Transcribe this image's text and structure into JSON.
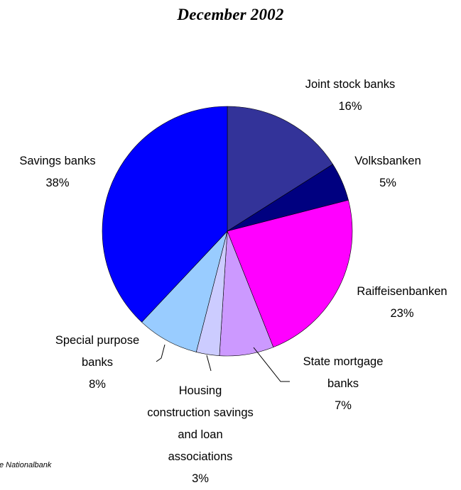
{
  "chart_data": {
    "type": "pie",
    "title": "December 2002",
    "slices": [
      {
        "label": "Joint stock banks",
        "value": 16,
        "value_label": "16%",
        "color": "#333399"
      },
      {
        "label": "Volksbanken",
        "value": 5,
        "value_label": "5%",
        "color": "#000080"
      },
      {
        "label": "Raiffeisenbanken",
        "value": 23,
        "value_label": "23%",
        "color": "#ff00ff"
      },
      {
        "label": "State mortgage banks",
        "value": 7,
        "value_label": "7%",
        "color": "#cc99ff"
      },
      {
        "label": "Housing construction savings and loan associations",
        "value": 3,
        "value_label": "3%",
        "color": "#ccccff"
      },
      {
        "label": "Special purpose banks",
        "value": 8,
        "value_label": "8%",
        "color": "#99ccff"
      },
      {
        "label": "Savings banks",
        "value": 38,
        "value_label": "38%",
        "color": "#0000ff"
      }
    ],
    "source_note": "e Nationalbank"
  }
}
